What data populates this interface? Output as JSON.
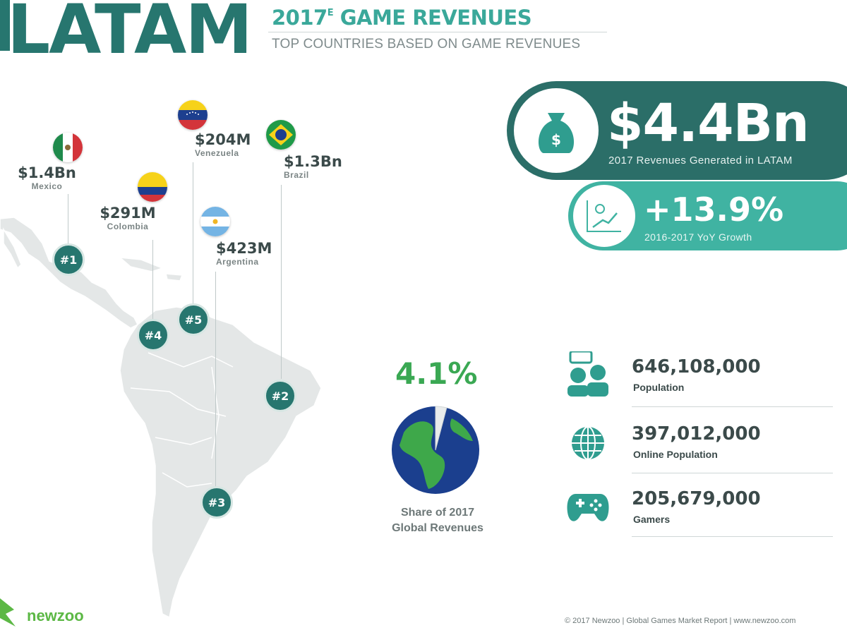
{
  "header": {
    "region": "LATAM",
    "title_year": "2017",
    "title_superscript": "E",
    "title_rest": " GAME REVENUES",
    "subtitle": "TOP COUNTRIES BASED ON GAME REVENUES"
  },
  "countries": [
    {
      "rank": "#1",
      "amount": "$1.4Bn",
      "name": "Mexico"
    },
    {
      "rank": "#4",
      "amount": "$291M",
      "name": "Colombia"
    },
    {
      "rank": "#5",
      "amount": "$204M",
      "name": "Venezuela"
    },
    {
      "rank": "#3",
      "amount": "$423M",
      "name": "Argentina"
    },
    {
      "rank": "#2",
      "amount": "$1.3Bn",
      "name": "Brazil"
    }
  ],
  "summary": {
    "revenue": "$4.4Bn",
    "revenue_label": "2017 Revenues Generated in LATAM",
    "growth": "+13.9%",
    "growth_label": "2016-2017 YoY Growth"
  },
  "share": {
    "value": "4.1%",
    "fraction": 0.041,
    "label_line1": "Share of 2017",
    "label_line2": "Global Revenues"
  },
  "stats": [
    {
      "value": "646,108,000",
      "label": "Population",
      "icon": "people-icon"
    },
    {
      "value": "397,012,000",
      "label": "Online Population",
      "icon": "globe-icon"
    },
    {
      "value": "205,679,000",
      "label": "Gamers",
      "icon": "gamepad-icon"
    }
  ],
  "footer": {
    "brand": "newzoo",
    "note": "© 2017 Newzoo | Global Games Market Report | www.newzoo.com"
  },
  "colors": {
    "teal_dark": "#27766f",
    "teal_light": "#40b3a2",
    "green": "#3aa853",
    "map_gray": "#e6e8e8"
  }
}
